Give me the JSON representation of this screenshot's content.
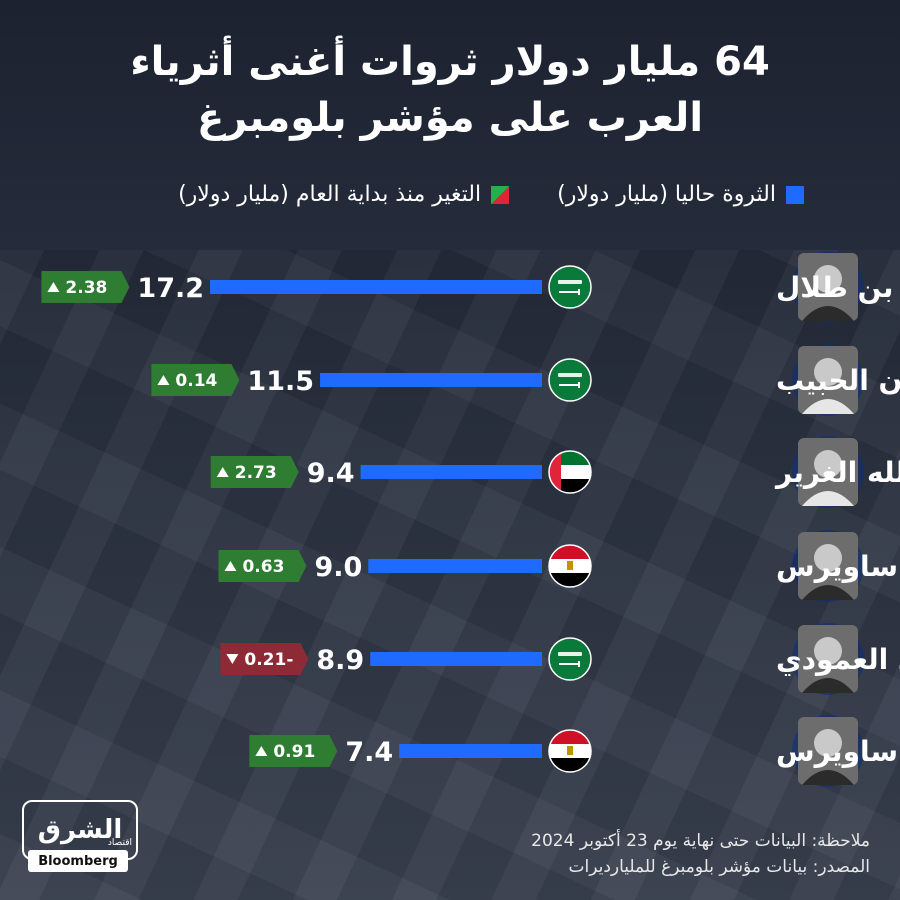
{
  "title": {
    "line1": "64 مليار دولار ثروات أغنى أثرياء",
    "line2": "العرب على مؤشر بلومبرغ"
  },
  "legend": {
    "wealth": "الثروة حاليا (مليار دولار)",
    "change": "التغير منذ بداية العام (مليار دولار)"
  },
  "colors": {
    "bar": "#1f6bff",
    "up": "#2e7d32",
    "down": "#8e2a35",
    "background": "#222936"
  },
  "chart_data": {
    "type": "bar",
    "orientation": "horizontal",
    "categories": [
      "الوليد بن طلال",
      "سليمان الحبيب",
      "عبد الله الغرير",
      "ناصف ساويرس",
      "محمد العمودي",
      "نجيب ساويرس"
    ],
    "series": [
      {
        "name": "الثروة حاليا (مليار دولار)",
        "values": [
          17.2,
          11.5,
          9.4,
          9.0,
          8.9,
          7.4
        ],
        "labels": [
          "17.2",
          "11.5",
          "9.4",
          "9.0",
          "8.9",
          "7.4"
        ]
      },
      {
        "name": "التغير منذ بداية العام (مليار دولار)",
        "values": [
          2.38,
          0.14,
          2.73,
          0.63,
          -0.21,
          0.91
        ],
        "labels": [
          "2.38",
          "0.14",
          "2.73",
          "0.63",
          "0.21-",
          "0.91"
        ]
      }
    ],
    "flags": [
      "saudi-flag-icon",
      "saudi-flag-icon",
      "uae-flag-icon",
      "egypt-flag-icon",
      "saudi-flag-icon",
      "egypt-flag-icon"
    ],
    "title": "64 مليار دولار ثروات أغنى أثرياء العرب على مؤشر بلومبرغ",
    "legend_position": "top-right"
  },
  "footer": {
    "note": "ملاحظة: البيانات حتى نهاية يوم 23 أكتوبر 2024",
    "source": "المصدر: بيانات مؤشر بلومبرغ للمليارديرات"
  },
  "logo": {
    "brand": "الشرق",
    "tag": "اقتصاد",
    "partner": "Bloomberg"
  }
}
